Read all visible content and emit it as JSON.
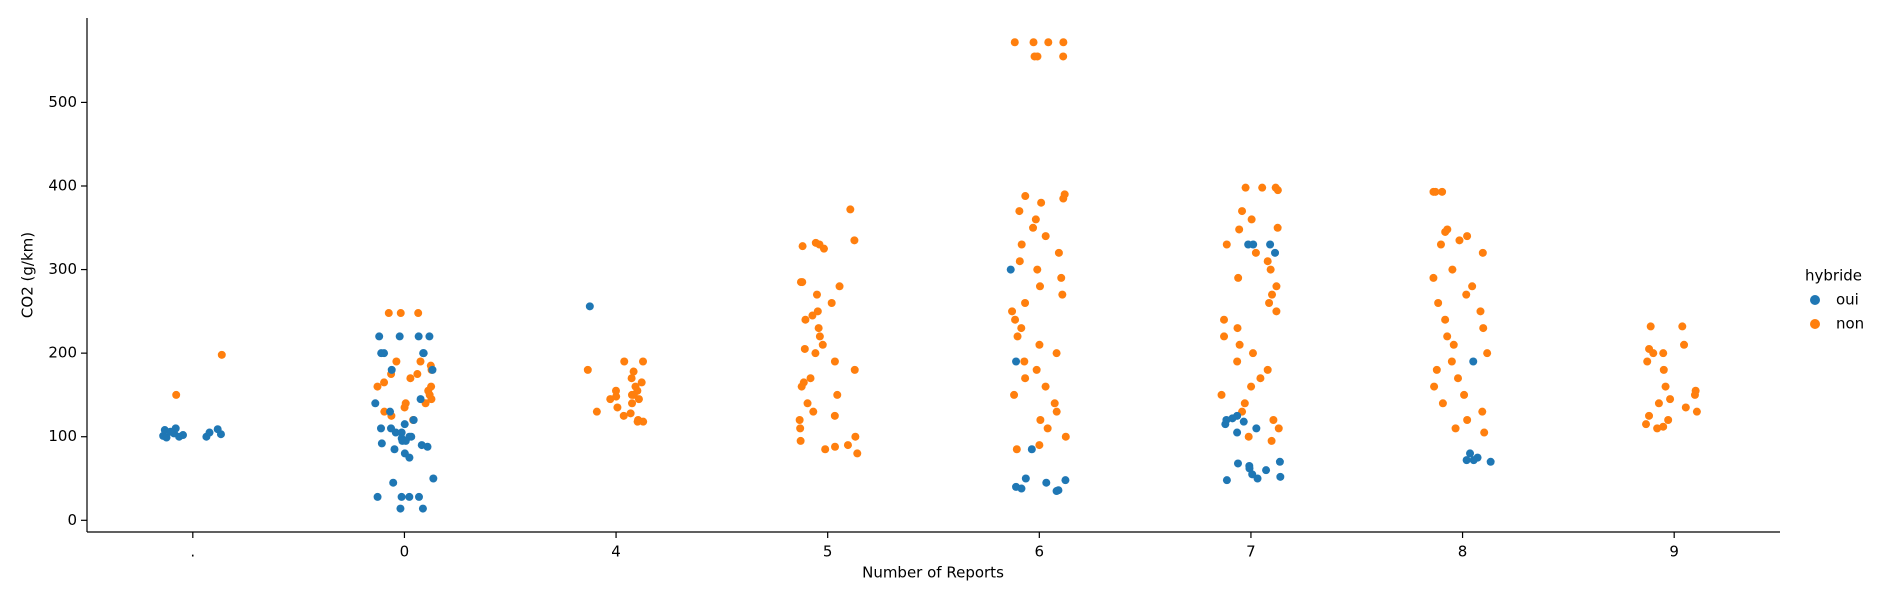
{
  "chart_data": {
    "type": "strip",
    "x_label": "Number of Reports",
    "y_label": "CO2 (g/km)",
    "categories": [
      ".",
      "0",
      "4",
      "5",
      "6",
      "7",
      "8",
      "9"
    ],
    "ylim": [
      -14,
      601
    ],
    "yticks": [
      0,
      100,
      200,
      300,
      400,
      500
    ],
    "grid": false,
    "legend_title": "hybride",
    "legend": "right",
    "series": [
      {
        "name": "oui",
        "color": "#1f77b4",
        "values": [
          [
            101,
            104,
            108,
            100,
            110,
            99,
            103,
            106,
            102,
            109,
            100,
            105
          ],
          [
            220,
            220,
            220,
            220,
            200,
            200,
            200,
            200,
            180,
            180,
            145,
            140,
            130,
            120,
            115,
            110,
            105,
            100,
            98,
            95,
            92,
            90,
            88,
            85,
            80,
            75,
            110,
            100,
            95,
            105,
            45,
            50,
            28,
            28,
            28,
            14,
            14,
            28
          ],
          [
            256
          ],
          [],
          [
            85,
            50,
            48,
            45,
            40,
            38,
            36,
            35,
            300,
            190
          ],
          [
            330,
            330,
            330,
            320,
            125,
            122,
            120,
            118,
            115,
            110,
            105,
            70,
            68,
            65,
            62,
            60,
            55,
            52,
            50,
            48
          ],
          [
            80,
            75,
            72,
            72,
            70,
            190
          ],
          []
        ]
      },
      {
        "name": "non",
        "color": "#ff7f0e",
        "values": [
          [
            150,
            198
          ],
          [
            248,
            248,
            248,
            190,
            185,
            180,
            175,
            170,
            165,
            160,
            155,
            150,
            145,
            140,
            135,
            130,
            125,
            120,
            190,
            175,
            160,
            140
          ],
          [
            190,
            190,
            180,
            178,
            170,
            165,
            160,
            155,
            150,
            148,
            145,
            140,
            135,
            130,
            128,
            125,
            120,
            118,
            118,
            155,
            150,
            145
          ],
          [
            372,
            335,
            332,
            330,
            328,
            325,
            285,
            280,
            270,
            260,
            250,
            240,
            230,
            220,
            210,
            200,
            190,
            180,
            170,
            160,
            150,
            140,
            130,
            120,
            110,
            100,
            95,
            90,
            85,
            80,
            285,
            245,
            205,
            165,
            125,
            88
          ],
          [
            572,
            572,
            572,
            572,
            555,
            555,
            555,
            390,
            388,
            385,
            380,
            370,
            360,
            350,
            340,
            330,
            320,
            310,
            300,
            290,
            280,
            270,
            260,
            250,
            240,
            230,
            220,
            210,
            200,
            190,
            180,
            170,
            160,
            150,
            140,
            130,
            120,
            110,
            100,
            90,
            85
          ],
          [
            398,
            398,
            398,
            395,
            370,
            360,
            350,
            348,
            330,
            320,
            310,
            300,
            290,
            280,
            270,
            260,
            250,
            240,
            230,
            220,
            210,
            200,
            190,
            180,
            170,
            160,
            150,
            140,
            130,
            120,
            110,
            100,
            95
          ],
          [
            393,
            393,
            393,
            348,
            345,
            340,
            335,
            330,
            320,
            300,
            290,
            280,
            270,
            260,
            250,
            240,
            230,
            220,
            210,
            200,
            190,
            180,
            170,
            160,
            150,
            140,
            130,
            120,
            110,
            105
          ],
          [
            232,
            232,
            210,
            205,
            200,
            200,
            190,
            180,
            160,
            155,
            150,
            145,
            140,
            135,
            130,
            125,
            120,
            115,
            112,
            110
          ]
        ]
      }
    ]
  }
}
